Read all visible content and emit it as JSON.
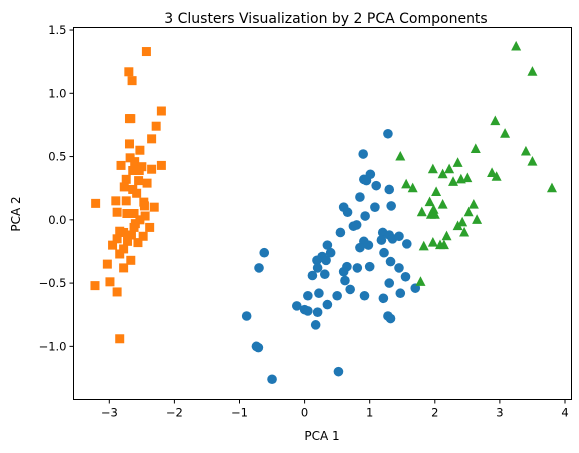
{
  "chart_data": {
    "type": "scatter",
    "title": "3 Clusters Visualization by 2 PCA Components",
    "xlabel": "PCA 1",
    "ylabel": "PCA 2",
    "xlim": [
      -3.55,
      4.1
    ],
    "ylim": [
      -1.42,
      1.52
    ],
    "xticks": [
      -3,
      -2,
      -1,
      0,
      1,
      2,
      3,
      4
    ],
    "xtick_labels": [
      "−3",
      "−2",
      "−1",
      "0",
      "1",
      "2",
      "3",
      "4"
    ],
    "yticks": [
      -1.0,
      -0.5,
      0.0,
      0.5,
      1.0,
      1.5
    ],
    "ytick_labels": [
      "−1.0",
      "−0.5",
      "0.0",
      "0.5",
      "1.0",
      "1.5"
    ],
    "grid": false,
    "legend": "none",
    "series": [
      {
        "marker": "square",
        "color": "#ff7f0e",
        "points": [
          [
            -2.43,
            1.33
          ],
          [
            -2.7,
            1.17
          ],
          [
            -2.65,
            1.1
          ],
          [
            -2.2,
            0.86
          ],
          [
            -2.67,
            0.8
          ],
          [
            -2.69,
            0.8
          ],
          [
            -2.28,
            0.74
          ],
          [
            -2.35,
            0.64
          ],
          [
            -2.69,
            0.6
          ],
          [
            -2.53,
            0.55
          ],
          [
            -2.68,
            0.49
          ],
          [
            -2.61,
            0.46
          ],
          [
            -2.82,
            0.43
          ],
          [
            -2.5,
            0.42
          ],
          [
            -2.2,
            0.43
          ],
          [
            -2.54,
            0.39
          ],
          [
            -2.64,
            0.39
          ],
          [
            -2.35,
            0.4
          ],
          [
            -2.74,
            0.32
          ],
          [
            -2.55,
            0.31
          ],
          [
            -2.42,
            0.29
          ],
          [
            -2.77,
            0.26
          ],
          [
            -2.64,
            0.24
          ],
          [
            -2.58,
            0.21
          ],
          [
            -2.9,
            0.15
          ],
          [
            -2.74,
            0.15
          ],
          [
            -2.47,
            0.14
          ],
          [
            -3.21,
            0.13
          ],
          [
            -2.46,
            0.11
          ],
          [
            -2.31,
            0.1
          ],
          [
            -2.73,
            0.05
          ],
          [
            -2.62,
            0.05
          ],
          [
            -2.88,
            0.06
          ],
          [
            -2.45,
            0.03
          ],
          [
            -2.53,
            0.0
          ],
          [
            -2.6,
            -0.03
          ],
          [
            -2.62,
            -0.06
          ],
          [
            -2.38,
            -0.06
          ],
          [
            -2.84,
            -0.09
          ],
          [
            -2.78,
            -0.1
          ],
          [
            -2.66,
            -0.12
          ],
          [
            -2.48,
            -0.13
          ],
          [
            -2.88,
            -0.15
          ],
          [
            -2.72,
            -0.17
          ],
          [
            -2.56,
            -0.18
          ],
          [
            -2.95,
            -0.2
          ],
          [
            -2.78,
            -0.23
          ],
          [
            -2.84,
            -0.27
          ],
          [
            -2.67,
            -0.32
          ],
          [
            -3.03,
            -0.35
          ],
          [
            -2.78,
            -0.38
          ],
          [
            -2.99,
            -0.49
          ],
          [
            -3.22,
            -0.52
          ],
          [
            -2.88,
            -0.57
          ],
          [
            -2.84,
            -0.94
          ]
        ]
      },
      {
        "marker": "circle",
        "color": "#1f77b4",
        "points": [
          [
            1.28,
            0.68
          ],
          [
            0.9,
            0.52
          ],
          [
            1.01,
            0.36
          ],
          [
            0.91,
            0.32
          ],
          [
            0.95,
            0.31
          ],
          [
            1.1,
            0.27
          ],
          [
            0.85,
            0.18
          ],
          [
            1.3,
            0.24
          ],
          [
            1.33,
            0.11
          ],
          [
            1.08,
            0.1
          ],
          [
            0.6,
            0.1
          ],
          [
            0.66,
            0.06
          ],
          [
            0.93,
            0.03
          ],
          [
            0.8,
            -0.04
          ],
          [
            0.75,
            -0.05
          ],
          [
            1.2,
            -0.1
          ],
          [
            1.3,
            -0.12
          ],
          [
            1.35,
            -0.15
          ],
          [
            1.45,
            -0.13
          ],
          [
            0.55,
            -0.1
          ],
          [
            1.18,
            -0.16
          ],
          [
            0.91,
            -0.17
          ],
          [
            0.98,
            -0.2
          ],
          [
            0.35,
            -0.2
          ],
          [
            0.85,
            -0.22
          ],
          [
            1.57,
            -0.19
          ],
          [
            1.22,
            -0.26
          ],
          [
            0.4,
            -0.26
          ],
          [
            0.27,
            -0.29
          ],
          [
            0.33,
            -0.32
          ],
          [
            0.19,
            -0.32
          ],
          [
            1.32,
            -0.33
          ],
          [
            0.2,
            -0.38
          ],
          [
            0.65,
            -0.37
          ],
          [
            1.45,
            -0.38
          ],
          [
            1.0,
            -0.37
          ],
          [
            0.81,
            -0.38
          ],
          [
            0.6,
            -0.41
          ],
          [
            0.31,
            -0.43
          ],
          [
            0.12,
            -0.44
          ],
          [
            1.55,
            -0.45
          ],
          [
            0.62,
            -0.48
          ],
          [
            1.3,
            -0.5
          ],
          [
            0.7,
            -0.55
          ],
          [
            1.47,
            -0.58
          ],
          [
            1.7,
            -0.54
          ],
          [
            0.22,
            -0.58
          ],
          [
            0.92,
            -0.6
          ],
          [
            0.05,
            -0.6
          ],
          [
            0.5,
            -0.6
          ],
          [
            1.21,
            -0.62
          ],
          [
            -0.12,
            -0.68
          ],
          [
            0.35,
            -0.67
          ],
          [
            0.0,
            -0.71
          ],
          [
            0.05,
            -0.72
          ],
          [
            0.2,
            -0.73
          ],
          [
            1.28,
            -0.76
          ],
          [
            1.32,
            -0.78
          ],
          [
            -0.7,
            -0.38
          ],
          [
            -0.62,
            -0.26
          ],
          [
            0.17,
            -0.83
          ],
          [
            -0.89,
            -0.76
          ],
          [
            -0.74,
            -1.0
          ],
          [
            -0.71,
            -1.01
          ],
          [
            -0.5,
            -1.26
          ],
          [
            0.52,
            -1.2
          ]
        ]
      },
      {
        "marker": "triangle",
        "color": "#2ca02c",
        "points": [
          [
            3.25,
            1.37
          ],
          [
            3.5,
            1.17
          ],
          [
            2.93,
            0.78
          ],
          [
            3.08,
            0.68
          ],
          [
            2.63,
            0.56
          ],
          [
            3.4,
            0.54
          ],
          [
            1.47,
            0.5
          ],
          [
            3.5,
            0.46
          ],
          [
            2.35,
            0.45
          ],
          [
            1.97,
            0.4
          ],
          [
            2.22,
            0.4
          ],
          [
            2.88,
            0.37
          ],
          [
            2.12,
            0.36
          ],
          [
            2.95,
            0.34
          ],
          [
            2.5,
            0.33
          ],
          [
            2.4,
            0.32
          ],
          [
            2.28,
            0.3
          ],
          [
            1.56,
            0.28
          ],
          [
            1.66,
            0.25
          ],
          [
            3.8,
            0.25
          ],
          [
            2.02,
            0.22
          ],
          [
            1.92,
            0.14
          ],
          [
            2.6,
            0.12
          ],
          [
            2.12,
            0.12
          ],
          [
            1.98,
            0.08
          ],
          [
            1.8,
            0.06
          ],
          [
            2.52,
            0.06
          ],
          [
            1.94,
            0.04
          ],
          [
            2.0,
            0.04
          ],
          [
            2.42,
            -0.02
          ],
          [
            2.65,
            0.0
          ],
          [
            2.35,
            -0.05
          ],
          [
            2.45,
            -0.1
          ],
          [
            2.18,
            -0.13
          ],
          [
            2.08,
            -0.2
          ],
          [
            1.97,
            -0.18
          ],
          [
            1.83,
            -0.21
          ],
          [
            2.14,
            -0.2
          ],
          [
            1.78,
            -0.49
          ]
        ]
      }
    ]
  }
}
